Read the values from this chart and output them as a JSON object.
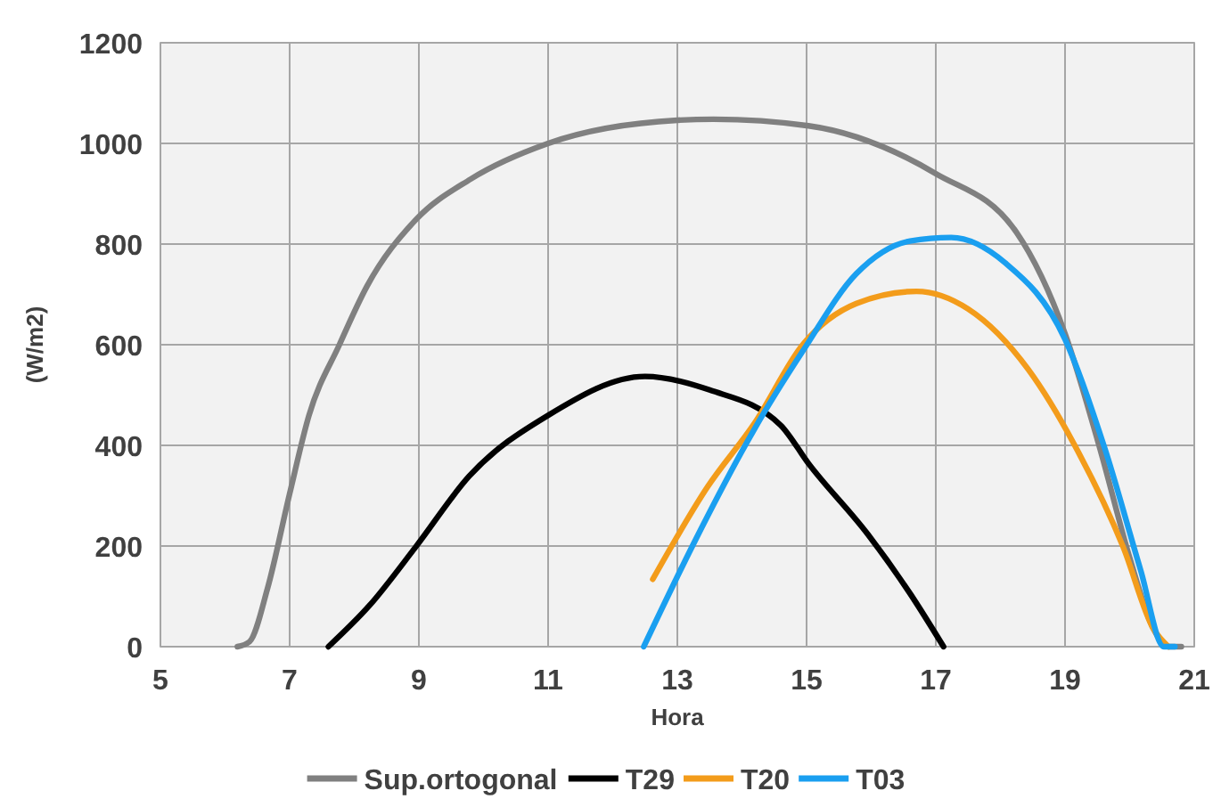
{
  "chart_data": {
    "type": "line",
    "xlabel": "Hora",
    "ylabel": "(W/m2)",
    "xlim": [
      5,
      21
    ],
    "xticks": [
      5,
      7,
      9,
      11,
      13,
      15,
      17,
      19,
      21
    ],
    "ylim": [
      0,
      1200
    ],
    "yticks": [
      0,
      200,
      400,
      600,
      800,
      1000,
      1200
    ],
    "grid": true,
    "legend": "bottom",
    "marker": "none",
    "line_style": "solid",
    "series": [
      {
        "name": "Sup.ortogonal",
        "color": "#808080",
        "x": [
          6.19,
          6.38,
          6.66,
          7,
          7.3,
          7.77,
          8.2,
          8.95,
          9.8,
          11,
          13,
          13.56,
          15.03,
          17,
          18.25,
          19,
          19.55,
          20,
          20.37,
          20.6,
          20.8
        ],
        "values": [
          0,
          10,
          117,
          304,
          460,
          600,
          717,
          848,
          929,
          1000,
          1046,
          1048,
          1035,
          940,
          823,
          622,
          389,
          177,
          35,
          0,
          0
        ]
      },
      {
        "name": "T29",
        "color": "#000000",
        "x": [
          7.6,
          8.23,
          8.95,
          9.78,
          10.99,
          12.5,
          13.5,
          14.6,
          15.03,
          15.95,
          16.6,
          17.12
        ],
        "values": [
          0,
          81,
          198,
          339,
          459,
          537,
          510,
          440,
          364,
          223,
          106,
          0
        ]
      },
      {
        "name": "T20",
        "color": "#f39c1b",
        "x": [
          12.62,
          13.47,
          14.2,
          14.94,
          15.77,
          16.7,
          17.5,
          18.43,
          19.15,
          19.9,
          20.37,
          20.6
        ],
        "values": [
          134,
          318,
          445,
          600,
          682,
          706,
          671,
          551,
          400,
          198,
          35,
          0
        ]
      },
      {
        "name": "T03",
        "color": "#1a9ff0",
        "x": [
          12.48,
          13.28,
          14.2,
          14.94,
          15.77,
          16.6,
          17.24,
          18.07,
          19,
          19.63,
          20.17,
          20.53,
          20.7
        ],
        "values": [
          0,
          212,
          434,
          587,
          741,
          806,
          813,
          763,
          611,
          388,
          152,
          0,
          0
        ]
      }
    ]
  }
}
